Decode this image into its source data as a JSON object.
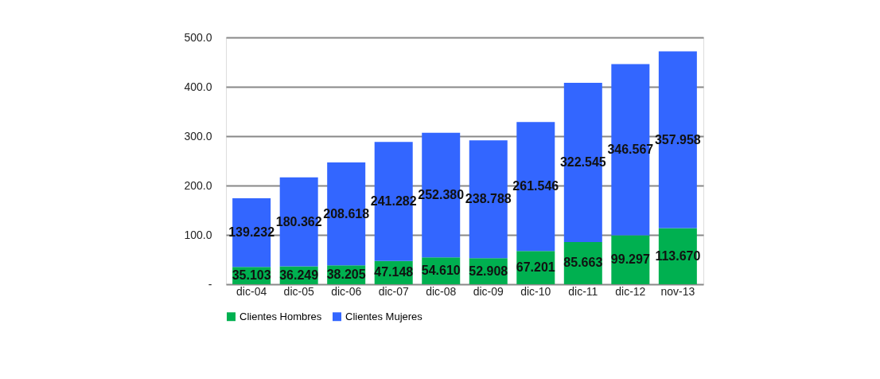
{
  "chart_data": {
    "type": "bar",
    "stacked": true,
    "categories": [
      "dic-04",
      "dic-05",
      "dic-06",
      "dic-07",
      "dic-08",
      "dic-09",
      "dic-10",
      "dic-11",
      "dic-12",
      "nov-13"
    ],
    "series": [
      {
        "name": "Clientes Hombres",
        "color": "#00b050",
        "values": [
          35.103,
          36.249,
          38.205,
          47.148,
          54.61,
          52.908,
          67.201,
          85.663,
          99.297,
          113.67
        ],
        "value_labels": [
          "35.103",
          "36.249",
          "38.205",
          "47.148",
          "54.610",
          "52.908",
          "67.201",
          "85.663",
          "99.297",
          "113.670"
        ]
      },
      {
        "name": "Clientes Mujeres",
        "color": "#3366ff",
        "values": [
          139.232,
          180.362,
          208.618,
          241.282,
          252.38,
          238.788,
          261.546,
          322.545,
          346.567,
          357.958
        ],
        "value_labels": [
          "139.232",
          "180.362",
          "208.618",
          "241.282",
          "252.380",
          "238.788",
          "261.546",
          "322.545",
          "346.567",
          "357.958"
        ]
      }
    ],
    "ylim": [
      0,
      500
    ],
    "yticks": [
      {
        "value": 0,
        "label": "-"
      },
      {
        "value": 100,
        "label": "100.0"
      },
      {
        "value": 200,
        "label": "200.0"
      },
      {
        "value": 300,
        "label": "300.0"
      },
      {
        "value": 400,
        "label": "400.0"
      },
      {
        "value": 500,
        "label": "500.0"
      }
    ],
    "grid": "y",
    "legend": "bottom"
  }
}
